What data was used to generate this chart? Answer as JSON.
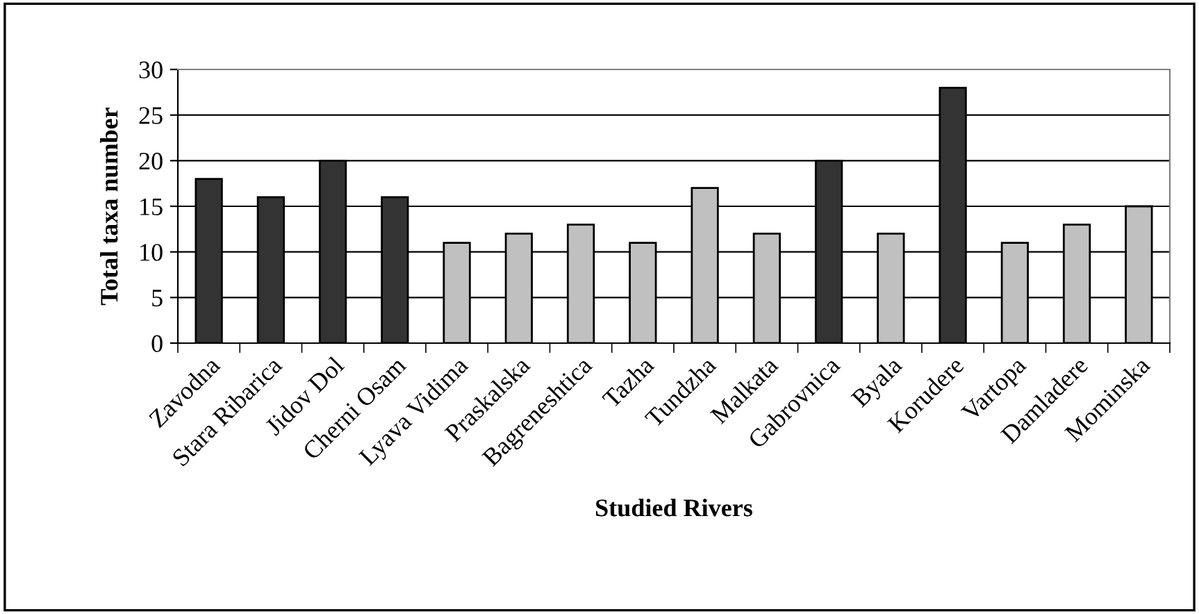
{
  "chart_data": {
    "type": "bar",
    "xlabel": "Studied Rivers",
    "ylabel": "Total taxa number",
    "categories": [
      "Zavodna",
      "Stara Ribarica",
      "Jidov Dol",
      "Cherni Osam",
      "Lyava Vidima",
      "Praskalska",
      "Bagreneshtica",
      "Tazha",
      "Tundzha",
      "Malkata",
      "Gabrovnica",
      "Byala",
      "Korudere",
      "Vartopa",
      "Damladere",
      "Mominska"
    ],
    "values": [
      18,
      16,
      20,
      16,
      11,
      12,
      13,
      11,
      17,
      12,
      20,
      12,
      28,
      11,
      13,
      15
    ],
    "colors": [
      "#333333",
      "#333333",
      "#333333",
      "#333333",
      "#c0c0c0",
      "#c0c0c0",
      "#c0c0c0",
      "#c0c0c0",
      "#c0c0c0",
      "#c0c0c0",
      "#333333",
      "#c0c0c0",
      "#333333",
      "#c0c0c0",
      "#c0c0c0",
      "#c0c0c0"
    ],
    "ylim": [
      0,
      30
    ],
    "yticks": [
      0,
      5,
      10,
      15,
      20,
      25,
      30
    ],
    "grid": "y",
    "legend": false
  }
}
